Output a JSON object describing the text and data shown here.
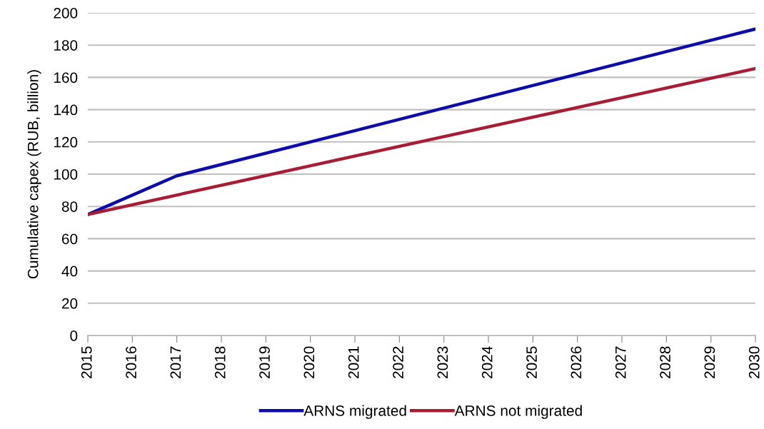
{
  "chart_data": {
    "type": "line",
    "ylabel": "Cumulative capex (RUB, billion)",
    "xlim": [
      2015,
      2030
    ],
    "xticks": [
      2015,
      2016,
      2017,
      2018,
      2019,
      2020,
      2021,
      2022,
      2023,
      2024,
      2025,
      2026,
      2027,
      2028,
      2029,
      2030
    ],
    "ylim": [
      0,
      200
    ],
    "yticks": [
      0,
      20,
      40,
      60,
      80,
      100,
      120,
      140,
      160,
      180,
      200
    ],
    "grid": "y",
    "legend": "bottom",
    "marker": "none",
    "line_style": "solid",
    "series": [
      {
        "name": "ARNS migrated",
        "color": "#0c0ca8",
        "x": [
          2015,
          2017,
          2030
        ],
        "values": [
          75,
          99,
          190
        ]
      },
      {
        "name": "ARNS not migrated",
        "color": "#a81c34",
        "x": [
          2015,
          2030
        ],
        "values": [
          75,
          165.5
        ]
      }
    ]
  }
}
